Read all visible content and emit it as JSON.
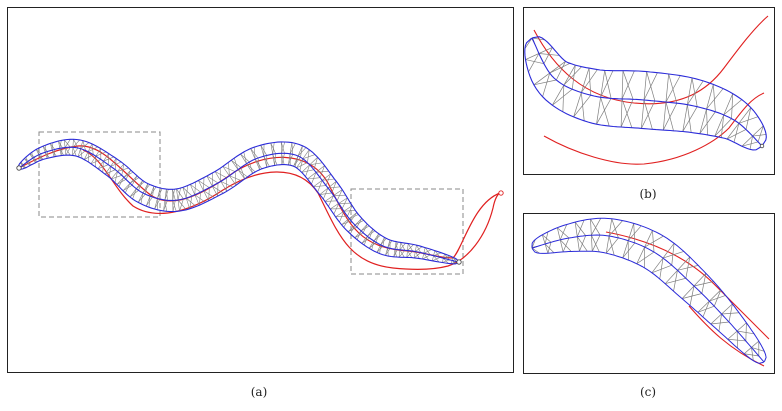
{
  "captions": {
    "a": "(a)",
    "b": "(b)",
    "c": "(c)"
  },
  "colors": {
    "mesh": "#7f7f7f",
    "blue": "#2b2bd9",
    "red": "#e02020",
    "box": "#8a8a8a",
    "frame": "#222222"
  }
}
